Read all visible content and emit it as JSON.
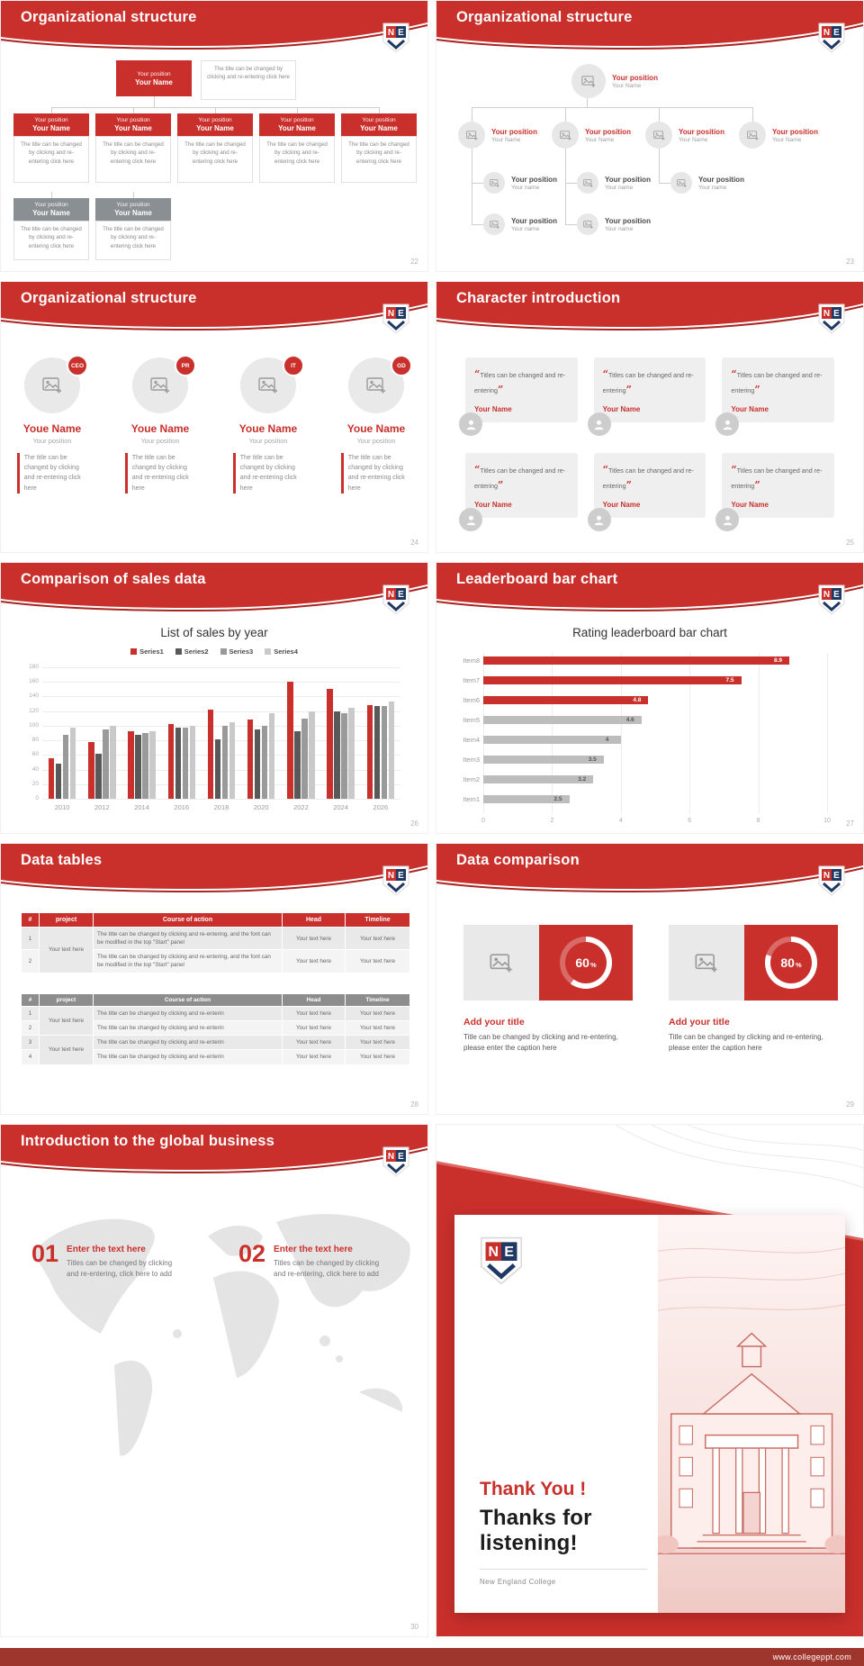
{
  "footer": {
    "url": "www.collegeppt.com"
  },
  "common": {
    "position": "Your position",
    "name": "Your Name",
    "name_alt": "Your name",
    "text_here": "Your text here"
  },
  "slides": {
    "s22": {
      "title": "Organizational structure",
      "page": "22",
      "desc": "The title can be changed by clicking and re-entering click here"
    },
    "s23": {
      "title": "Organizational structure",
      "page": "23"
    },
    "s24": {
      "title": "Organizational structure",
      "page": "24",
      "badges": [
        "CEO",
        "PR",
        "IT",
        "GD"
      ],
      "name": "Youe Name",
      "desc": "The title can be changed by clicking and re-entering click here"
    },
    "s25": {
      "title": "Character introduction",
      "page": "25",
      "quote": "Titles can be changed and re-entering"
    },
    "s26": {
      "title": "Comparison of sales data",
      "page": "26"
    },
    "s27": {
      "title": "Leaderboard bar chart",
      "page": "27"
    },
    "s28": {
      "title": "Data tables",
      "page": "28",
      "headers": [
        "#",
        "project",
        "Course of action",
        "Head",
        "Timeline"
      ],
      "long_action": "The title can be changed by clicking and re-entering, and the font can be modified in the top \"Start\" panel",
      "short_action": "The title can be changed by clicking and re-enterin",
      "t1_rows": [
        "1",
        "2"
      ],
      "t2_rows": [
        "1",
        "2",
        "3",
        "4"
      ]
    },
    "s29": {
      "title": "Data comparison",
      "page": "29",
      "item_title": "Add your title",
      "caption": "Title can be changed by clicking and re-entering, please enter the caption here",
      "pct_sign": "%",
      "panels": [
        {
          "value": "60",
          "percent": 60
        },
        {
          "value": "80",
          "percent": 80
        }
      ]
    },
    "s30": {
      "title": "Introduction to the global business",
      "page": "30",
      "items": [
        {
          "num": "01",
          "title": "Enter the text here",
          "text": "Titles can be changed by clicking and re-entering, click here to add"
        },
        {
          "num": "02",
          "title": "Enter the text here",
          "text": "Titles can be changed by clicking and re-entering, click here to add"
        }
      ]
    },
    "thanks": {
      "title1": "Thank You !",
      "title2": "Thanks for listening!",
      "school": "New England College"
    }
  },
  "chart_data": [
    {
      "type": "bar",
      "title": "List of sales by year",
      "categories": [
        "2010",
        "2012",
        "2014",
        "2016",
        "2018",
        "2020",
        "2022",
        "2024",
        "2026"
      ],
      "series": [
        {
          "name": "Series1",
          "color": "#c9302c",
          "values": [
            55,
            78,
            93,
            102,
            122,
            108,
            160,
            150,
            128
          ]
        },
        {
          "name": "Series2",
          "color": "#595959",
          "values": [
            48,
            62,
            87,
            98,
            82,
            95,
            92,
            120,
            127
          ]
        },
        {
          "name": "Series3",
          "color": "#9a9a9a",
          "values": [
            88,
            95,
            90,
            97,
            100,
            100,
            110,
            117,
            127
          ]
        },
        {
          "name": "Series4",
          "color": "#c9c9c9",
          "values": [
            97,
            100,
            92,
            100,
            105,
            117,
            120,
            124,
            133
          ]
        }
      ],
      "ylim": [
        0,
        180
      ],
      "ytick": 20,
      "grid": true,
      "legend_position": "top"
    },
    {
      "type": "bar-horizontal",
      "title": "Rating leaderboard bar chart",
      "categories": [
        "Item8",
        "Item7",
        "Item6",
        "Item5",
        "Item4",
        "Item3",
        "Item2",
        "Item1"
      ],
      "values": [
        8.9,
        7.5,
        4.8,
        4.6,
        4,
        3.5,
        3.2,
        2.5
      ],
      "labels": [
        "8.9",
        "7.5",
        "4.8",
        "4.6",
        "4",
        "3.5",
        "3.2",
        "2.5"
      ],
      "bar_colors": [
        "#c9302c",
        "#c9302c",
        "#c9302c",
        "#bdbdbd",
        "#bdbdbd",
        "#bdbdbd",
        "#bdbdbd",
        "#bdbdbd"
      ],
      "xlim": [
        0,
        10
      ],
      "xtick": 2,
      "grid": true
    }
  ],
  "colors": {
    "primary": "#c9302c",
    "footer_bar": "#9e362e",
    "navy": "#1f3864",
    "gray_node": "#8a8f94"
  }
}
